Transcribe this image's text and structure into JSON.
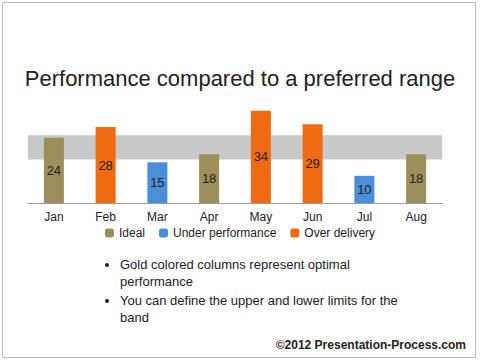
{
  "chart_data": {
    "type": "bar",
    "title": "Performance compared to a preferred range",
    "categories": [
      "Jan",
      "Feb",
      "Mar",
      "Apr",
      "May",
      "Jun",
      "Jul",
      "Aug"
    ],
    "series": [
      {
        "name": "Ideal",
        "color": "#9c8f5c",
        "values": [
          24,
          null,
          null,
          18,
          null,
          null,
          null,
          18
        ]
      },
      {
        "name": "Under performance",
        "color": "#4a8fd8",
        "values": [
          null,
          null,
          15,
          null,
          null,
          null,
          10,
          null
        ]
      },
      {
        "name": "Over delivery",
        "color": "#f06a12",
        "values": [
          null,
          28,
          null,
          null,
          34,
          29,
          null,
          null
        ]
      }
    ],
    "preferred_range": [
      16,
      25
    ],
    "ylim": [
      0,
      35
    ],
    "yticks": [
      0,
      35
    ],
    "tick_labels": "x",
    "grid": false,
    "legend": "bottom",
    "data_labels": true,
    "annotations": [
      "Gold colored columns represent optimal performance",
      "You can define the upper and lower limits for the band"
    ],
    "credit": "©2012 Presentation-Process.com"
  }
}
